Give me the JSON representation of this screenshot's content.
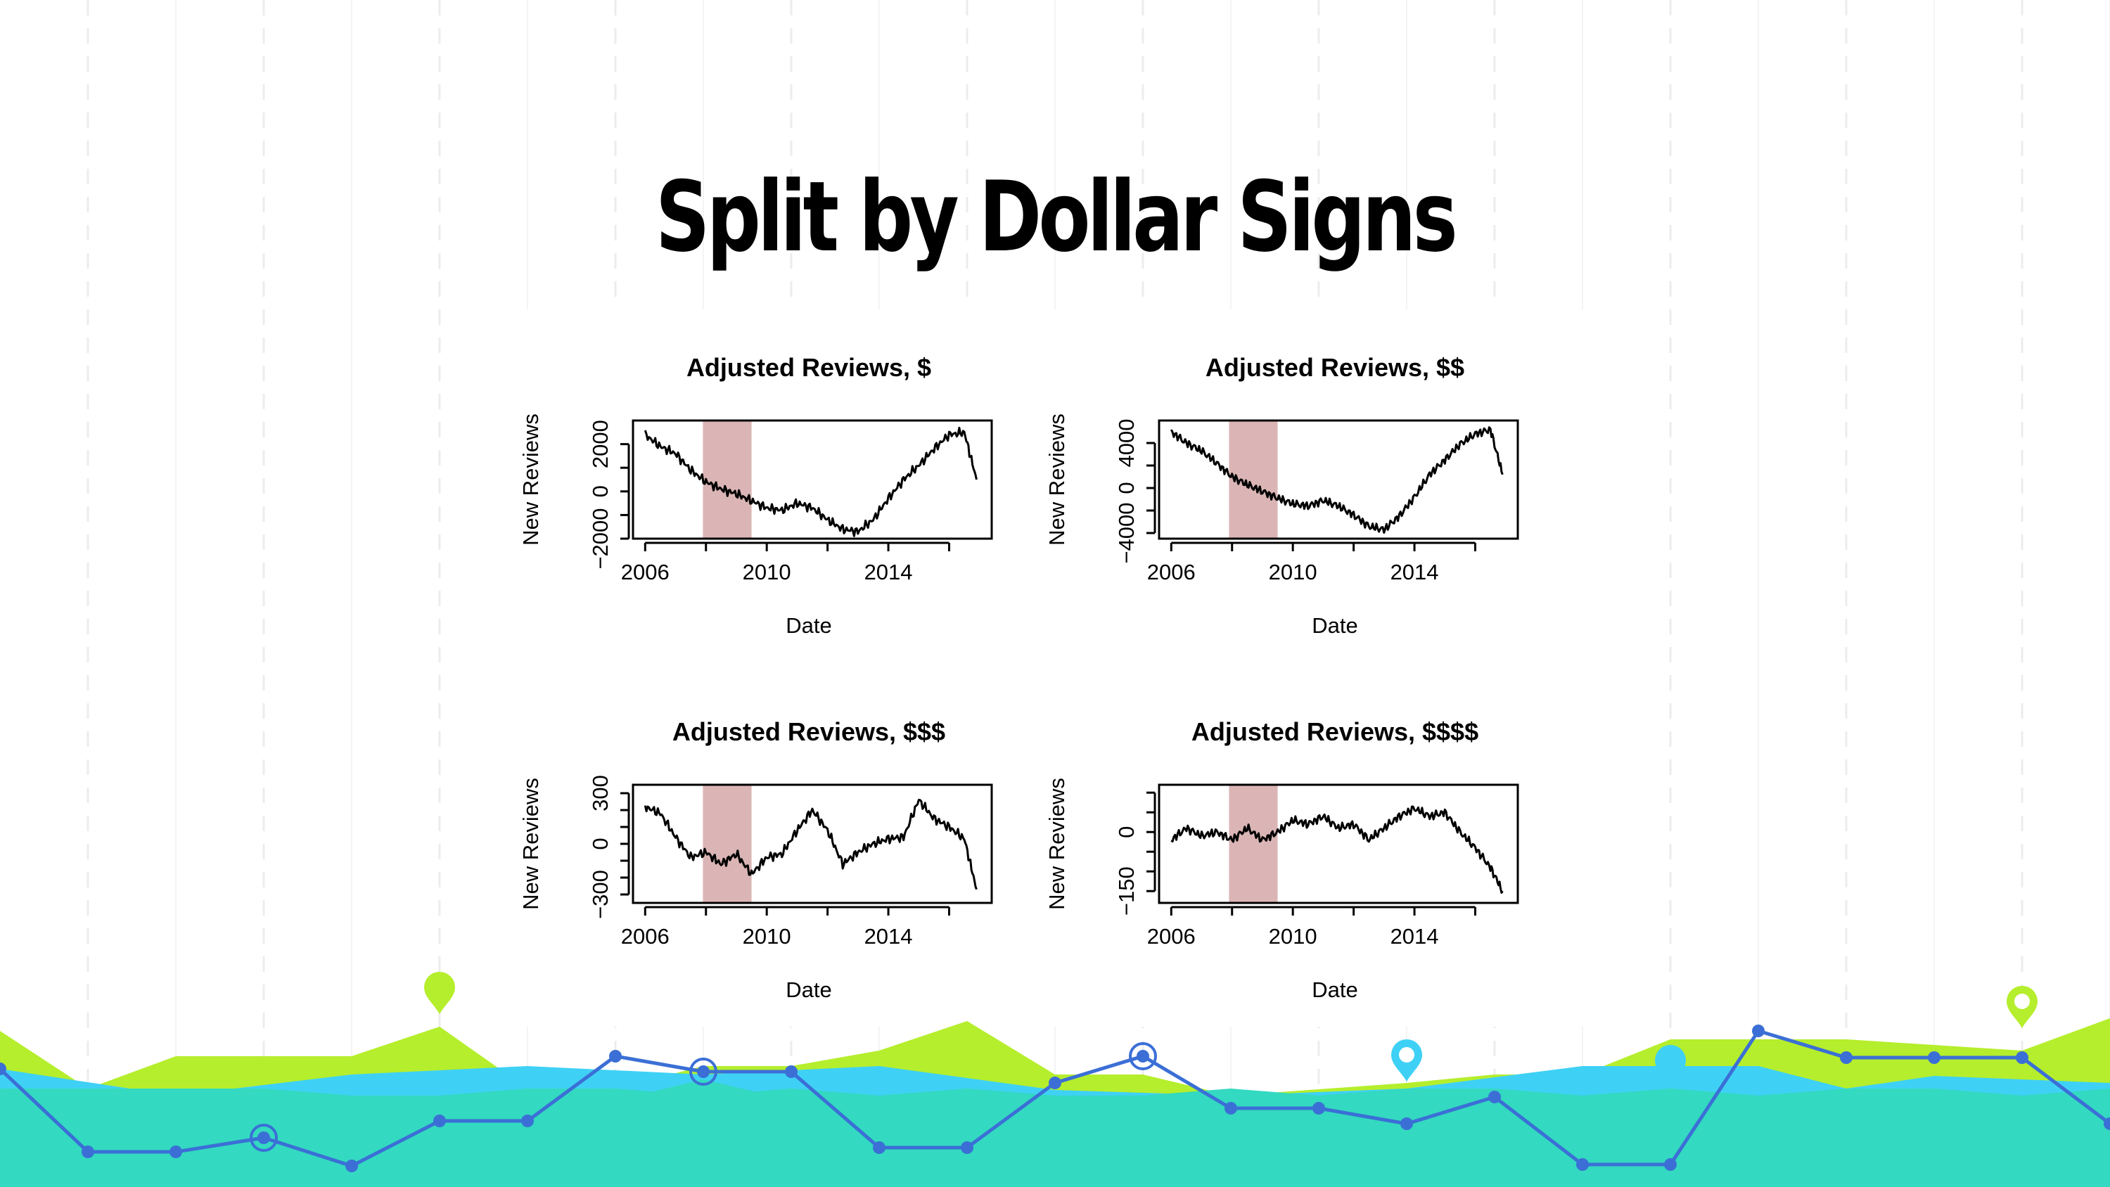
{
  "slide": {
    "title": "Split by Dollar Signs"
  },
  "colors": {
    "title": "#000000",
    "shade": "#dbb5b5",
    "line": "#000000",
    "footer_lime": "#b5ee2c",
    "footer_teal": "#33d9c0",
    "footer_cyan": "#3fd1f5",
    "footer_blue_line": "#3b6fd6"
  },
  "chart_data": [
    {
      "type": "line",
      "title": "Adjusted Reviews, $",
      "xlabel": "Date",
      "ylabel": "New Reviews",
      "xlim": [
        2005.6,
        2017.4
      ],
      "xticks": [
        2006,
        2008,
        2010,
        2012,
        2014,
        2016
      ],
      "xtick_labels": [
        "2006",
        "",
        "2010",
        "",
        "2014",
        ""
      ],
      "ylim": [
        -2000,
        3000
      ],
      "yticks": [
        -2000,
        -1000,
        0,
        1000,
        2000
      ],
      "ytick_labels": [
        "−2000",
        "",
        "0",
        "",
        "2000"
      ],
      "shaded_region": [
        2007.9,
        2009.5
      ],
      "series": [
        {
          "x": [
            2006.0,
            2006.5,
            2007.0,
            2007.5,
            2008.0,
            2008.5,
            2009.0,
            2009.5,
            2010.0,
            2010.5,
            2011.0,
            2011.5,
            2012.0,
            2012.5,
            2013.0,
            2013.5,
            2014.0,
            2014.5,
            2015.0,
            2015.5,
            2016.0,
            2016.5,
            2016.9
          ],
          "values": [
            2400,
            1900,
            1600,
            900,
            400,
            100,
            -100,
            -400,
            -700,
            -800,
            -500,
            -700,
            -1200,
            -1600,
            -1700,
            -1200,
            -300,
            500,
            1100,
            1800,
            2400,
            2500,
            500
          ]
        }
      ]
    },
    {
      "type": "line",
      "title": "Adjusted Reviews, $$",
      "xlabel": "Date",
      "ylabel": "New Reviews",
      "xlim": [
        2005.6,
        2017.4
      ],
      "xticks": [
        2006,
        2008,
        2010,
        2012,
        2014,
        2016
      ],
      "xtick_labels": [
        "2006",
        "",
        "2010",
        "",
        "2014",
        ""
      ],
      "ylim": [
        -4500,
        6000
      ],
      "yticks": [
        -4000,
        -2000,
        0,
        2000,
        4000
      ],
      "ytick_labels": [
        "−4000",
        "",
        "0",
        "",
        "4000"
      ],
      "shaded_region": [
        2007.9,
        2009.5
      ],
      "series": [
        {
          "x": [
            2006.0,
            2006.5,
            2007.0,
            2007.5,
            2008.0,
            2008.5,
            2009.0,
            2009.5,
            2010.0,
            2010.5,
            2011.0,
            2011.5,
            2012.0,
            2012.5,
            2013.0,
            2013.5,
            2014.0,
            2014.5,
            2015.0,
            2015.5,
            2016.0,
            2016.5,
            2016.9
          ],
          "values": [
            5000,
            4000,
            3300,
            2200,
            1000,
            300,
            -300,
            -900,
            -1400,
            -1600,
            -1100,
            -1600,
            -2400,
            -3400,
            -3700,
            -2500,
            -800,
            1200,
            2500,
            3900,
            4800,
            5200,
            1200
          ]
        }
      ]
    },
    {
      "type": "line",
      "title": "Adjusted Reviews, $$$",
      "xlabel": "Date",
      "ylabel": "New Reviews",
      "xlim": [
        2005.6,
        2017.4
      ],
      "xticks": [
        2006,
        2008,
        2010,
        2012,
        2014,
        2016
      ],
      "xtick_labels": [
        "2006",
        "",
        "2010",
        "",
        "2014",
        ""
      ],
      "ylim": [
        -350,
        350
      ],
      "yticks": [
        -300,
        -200,
        -100,
        0,
        100,
        200,
        300
      ],
      "ytick_labels": [
        "−300",
        "",
        "",
        "0",
        "",
        "",
        "300"
      ],
      "shaded_region": [
        2007.9,
        2009.5
      ],
      "series": [
        {
          "x": [
            2006.0,
            2006.5,
            2007.0,
            2007.5,
            2008.0,
            2008.5,
            2009.0,
            2009.5,
            2010.0,
            2010.5,
            2011.0,
            2011.5,
            2012.0,
            2012.5,
            2013.0,
            2013.5,
            2014.0,
            2014.5,
            2015.0,
            2015.5,
            2016.0,
            2016.5,
            2016.9
          ],
          "values": [
            220,
            180,
            40,
            -80,
            -50,
            -120,
            -60,
            -180,
            -80,
            -60,
            80,
            200,
            80,
            -120,
            -50,
            0,
            30,
            40,
            260,
            150,
            100,
            30,
            -270
          ]
        }
      ]
    },
    {
      "type": "line",
      "title": "Adjusted Reviews, $$$$",
      "xlabel": "Date",
      "ylabel": "New Reviews",
      "xlim": [
        2005.6,
        2017.4
      ],
      "xticks": [
        2006,
        2008,
        2010,
        2012,
        2014,
        2016
      ],
      "xtick_labels": [
        "2006",
        "",
        "2010",
        "",
        "2014",
        ""
      ],
      "ylim": [
        -180,
        120
      ],
      "yticks": [
        -150,
        -100,
        -50,
        0,
        50,
        100
      ],
      "ytick_labels": [
        "−150",
        "",
        "",
        "0",
        "",
        ""
      ],
      "shaded_region": [
        2007.9,
        2009.5
      ],
      "series": [
        {
          "x": [
            2006.0,
            2006.5,
            2007.0,
            2007.5,
            2008.0,
            2008.5,
            2009.0,
            2009.5,
            2010.0,
            2010.5,
            2011.0,
            2011.5,
            2012.0,
            2012.5,
            2013.0,
            2013.5,
            2014.0,
            2014.5,
            2015.0,
            2015.5,
            2016.0,
            2016.5,
            2016.9
          ],
          "values": [
            -20,
            10,
            -10,
            0,
            -20,
            10,
            -20,
            0,
            30,
            20,
            40,
            10,
            20,
            -20,
            10,
            40,
            60,
            40,
            50,
            0,
            -40,
            -90,
            -150
          ]
        }
      ]
    }
  ]
}
